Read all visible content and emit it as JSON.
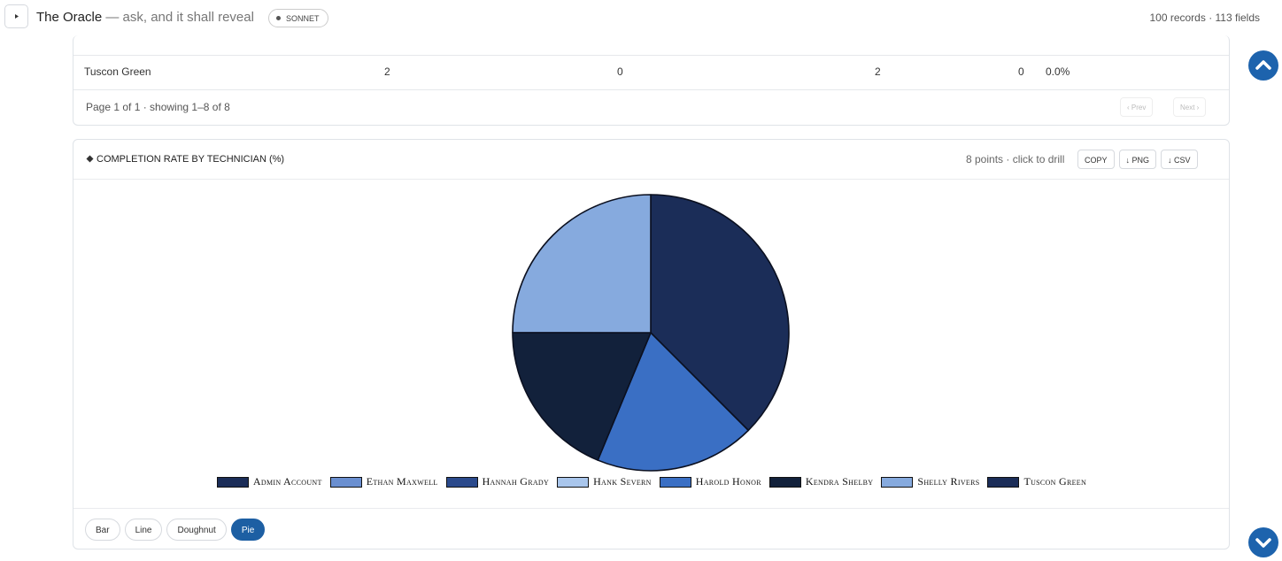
{
  "header": {
    "title": "The Oracle",
    "subtitle": "— ask, and it shall reveal",
    "badge": "SONNET",
    "stats": "100 records · 113 fields"
  },
  "table": {
    "rows": [
      [
        "Tuscon Green",
        2,
        0,
        2,
        0,
        "0.0%"
      ]
    ],
    "pagination": "Page 1 of 1 · showing 1–8 of 8",
    "prev": "‹ Prev",
    "next": "Next ›"
  },
  "chart_card": {
    "title": "COMPLETION RATE BY TECHNICIAN (%)",
    "info": "8 points · click to drill",
    "buttons": [
      "COPY",
      "↓ PNG",
      "↓ CSV"
    ],
    "chart_types": [
      "Bar",
      "Line",
      "Doughnut",
      "Pie"
    ],
    "active_type": 3
  },
  "chart_data": {
    "type": "pie",
    "categories": [
      "Admin Account",
      "Ethan Maxwell",
      "Hannah Grady",
      "Hank Severn",
      "Harold Honor",
      "Kendra Shelby",
      "Shelly Rivers",
      "Tuscon Green"
    ],
    "values": [
      50,
      0,
      0,
      0,
      25,
      25,
      33.3,
      0
    ],
    "colors": [
      "#1b2d58",
      "#6a8fd0",
      "#2b4a8c",
      "#a9c6ec",
      "#3a6fc4",
      "#12213b",
      "#86aade",
      "#1b2d58"
    ]
  }
}
